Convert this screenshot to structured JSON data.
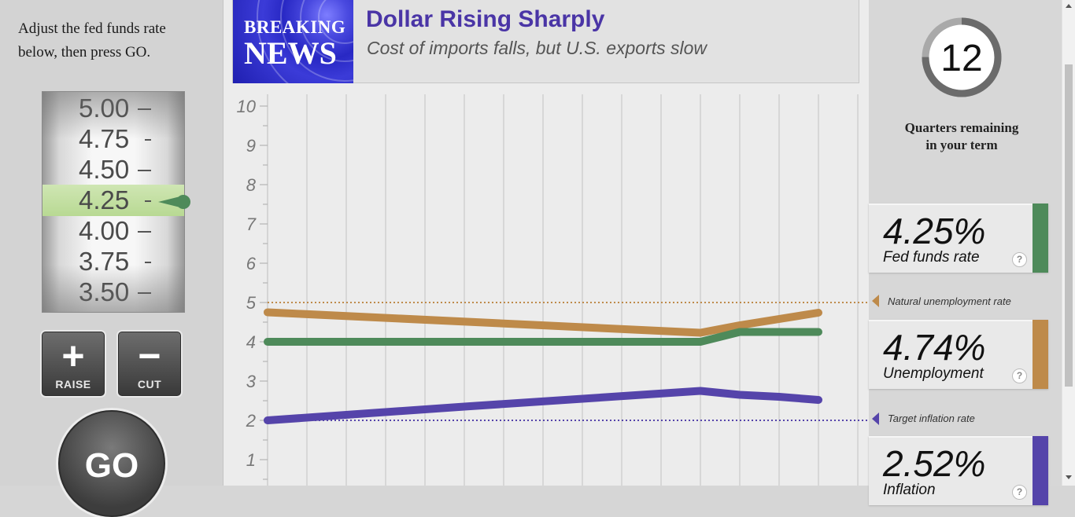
{
  "instructions": {
    "line1": "Adjust the fed funds rate",
    "line2": "below, then press GO."
  },
  "rate_dial": {
    "options": [
      "5.00",
      "4.75",
      "4.50",
      "4.25",
      "4.00",
      "3.75",
      "3.50"
    ],
    "selected": "4.25"
  },
  "buttons": {
    "raise_symbol": "+",
    "raise_label": "RAISE",
    "cut_symbol": "−",
    "cut_label": "CUT",
    "go_label": "GO"
  },
  "news": {
    "logo_line1": "BREAKING",
    "logo_line2": "NEWS",
    "headline": "Dollar Rising Sharply",
    "subhead": "Cost of imports falls, but U.S. exports slow"
  },
  "chart_data": {
    "type": "line",
    "y_ticks": [
      "10",
      "9",
      "8",
      "7",
      "6",
      "5",
      "4",
      "3",
      "2",
      "1"
    ],
    "ylim": [
      0,
      10
    ],
    "x_slots": 15,
    "grid": true,
    "series": [
      {
        "name": "Unemployment",
        "color": "#be8a4a",
        "x": [
          0,
          11,
          12,
          14
        ],
        "y": [
          4.75,
          4.23,
          4.42,
          4.74
        ]
      },
      {
        "name": "Fed funds rate",
        "color": "#4e8a5a",
        "x": [
          0,
          11,
          12,
          14
        ],
        "y": [
          4.0,
          4.0,
          4.25,
          4.25
        ]
      },
      {
        "name": "Inflation",
        "color": "#5544aa",
        "x": [
          0,
          5,
          11,
          12,
          13,
          14
        ],
        "y": [
          2.0,
          2.35,
          2.75,
          2.65,
          2.6,
          2.52
        ]
      }
    ],
    "reference_lines": [
      {
        "name": "Natural unemployment rate",
        "value": 5,
        "color": "#be8a4a",
        "style": "dotted"
      },
      {
        "name": "Target inflation rate",
        "value": 2,
        "color": "#5544aa",
        "style": "dotted"
      }
    ]
  },
  "term": {
    "quarters_remaining": "12",
    "quarters_total": 16,
    "label_line1": "Quarters remaining",
    "label_line2": "in your term"
  },
  "stats": {
    "fed_funds": {
      "value": "4.25%",
      "label": "Fed funds rate",
      "color": "#4e8a5a"
    },
    "unemployment": {
      "value": "4.74%",
      "label": "Unemployment",
      "color": "#be8a4a"
    },
    "inflation": {
      "value": "2.52%",
      "label": "Inflation",
      "color": "#5544aa"
    },
    "help": "?"
  },
  "refs": {
    "natural_unemployment": "Natural unemployment rate",
    "target_inflation": "Target inflation rate"
  }
}
